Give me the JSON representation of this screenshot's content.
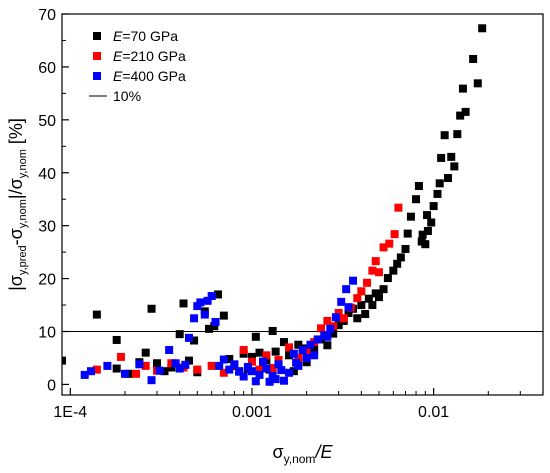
{
  "chart_data": {
    "type": "scatter",
    "title": "",
    "x_scale": "log",
    "xlim": [
      9e-05,
      0.04
    ],
    "ylim": [
      -2,
      70
    ],
    "x_ticks": [
      {
        "value": 0.0001,
        "label": "1E-4"
      },
      {
        "value": 0.001,
        "label": "0.001"
      },
      {
        "value": 0.01,
        "label": "0.01"
      }
    ],
    "y_ticks": [
      {
        "value": 0,
        "label": "0"
      },
      {
        "value": 10,
        "label": "10"
      },
      {
        "value": 20,
        "label": "20"
      },
      {
        "value": 30,
        "label": "30"
      },
      {
        "value": 40,
        "label": "40"
      },
      {
        "value": 50,
        "label": "50"
      },
      {
        "value": 60,
        "label": "60"
      },
      {
        "value": 70,
        "label": "70"
      }
    ],
    "xlabel": {
      "base": "σ",
      "sub": "y,nom",
      "rest": "/E"
    },
    "ylabel": {
      "parts": [
        {
          "t": "|σ"
        },
        {
          "t": "y,pred",
          "sub": true
        },
        {
          "t": "-σ"
        },
        {
          "t": "y,nom",
          "sub": true
        },
        {
          "t": "|/σ"
        },
        {
          "t": "y,nom",
          "sub": true
        },
        {
          "t": " [%]"
        }
      ]
    },
    "legend_position": "top-left",
    "reference_line": {
      "label": "10%",
      "y": 10,
      "color": "#000000"
    },
    "series": [
      {
        "legend_prefix": "E",
        "legend_suffix": "=70 GPa",
        "color": "#000000",
        "points": [
          [
            9e-05,
            4.5
          ],
          [
            0.00014,
            13.2
          ],
          [
            0.00018,
            8.4
          ],
          [
            0.00018,
            3.0
          ],
          [
            0.00021,
            2.0
          ],
          [
            0.00024,
            4.2
          ],
          [
            0.00026,
            6.0
          ],
          [
            0.00028,
            14.3
          ],
          [
            0.0003,
            4.0
          ],
          [
            0.00033,
            2.5
          ],
          [
            0.00036,
            3.2
          ],
          [
            0.0004,
            9.5
          ],
          [
            0.00042,
            15.3
          ],
          [
            0.00045,
            4.5
          ],
          [
            0.00048,
            8.3
          ],
          [
            0.0005,
            2.3
          ],
          [
            0.00055,
            13.8
          ],
          [
            0.00058,
            10.5
          ],
          [
            0.00062,
            11.0
          ],
          [
            0.00065,
            17.0
          ],
          [
            0.0007,
            13.0
          ],
          [
            0.00075,
            4.8
          ],
          [
            0.0008,
            3.5
          ],
          [
            0.00085,
            2.5
          ],
          [
            0.0009,
            5.8
          ],
          [
            0.00095,
            3.0
          ],
          [
            0.001,
            5.2
          ],
          [
            0.00105,
            9.0
          ],
          [
            0.0011,
            6.0
          ],
          [
            0.00115,
            3.8
          ],
          [
            0.0012,
            4.6
          ],
          [
            0.00125,
            2.8
          ],
          [
            0.0013,
            10.1
          ],
          [
            0.00135,
            6.2
          ],
          [
            0.0014,
            4.4
          ],
          [
            0.0015,
            8.0
          ],
          [
            0.0016,
            5.5
          ],
          [
            0.0017,
            2.5
          ],
          [
            0.0018,
            7.5
          ],
          [
            0.0019,
            6.8
          ],
          [
            0.002,
            4.2
          ],
          [
            0.0021,
            5.8
          ],
          [
            0.0022,
            6.5
          ],
          [
            0.0024,
            8.5
          ],
          [
            0.0026,
            7.4
          ],
          [
            0.0028,
            9.6
          ],
          [
            0.003,
            11.2
          ],
          [
            0.0032,
            12.0
          ],
          [
            0.0034,
            13.5
          ],
          [
            0.0036,
            14.3
          ],
          [
            0.0038,
            12.5
          ],
          [
            0.004,
            15.0
          ],
          [
            0.0042,
            13.3
          ],
          [
            0.0044,
            16.2
          ],
          [
            0.0046,
            15.0
          ],
          [
            0.0048,
            17.2
          ],
          [
            0.005,
            16.5
          ],
          [
            0.0053,
            18.0
          ],
          [
            0.0056,
            20.1
          ],
          [
            0.006,
            21.5
          ],
          [
            0.0063,
            22.8
          ],
          [
            0.0066,
            24.0
          ],
          [
            0.007,
            25.6
          ],
          [
            0.0072,
            28.5
          ],
          [
            0.0075,
            31.7
          ],
          [
            0.008,
            35.0
          ],
          [
            0.0083,
            37.5
          ],
          [
            0.0086,
            27.0
          ],
          [
            0.009,
            26.5
          ],
          [
            0.0093,
            29.0
          ],
          [
            0.0097,
            30.6
          ],
          [
            0.01,
            33.7
          ],
          [
            0.0105,
            36.0
          ],
          [
            0.011,
            42.8
          ],
          [
            0.0115,
            47.1
          ],
          [
            0.012,
            39.0
          ],
          [
            0.0125,
            43.0
          ],
          [
            0.013,
            41.2
          ],
          [
            0.0135,
            47.3
          ],
          [
            0.014,
            50.8
          ],
          [
            0.0145,
            55.9
          ],
          [
            0.015,
            51.5
          ],
          [
            0.0165,
            61.5
          ],
          [
            0.0175,
            56.9
          ],
          [
            0.0185,
            67.3
          ],
          [
            0.0087,
            28.3
          ],
          [
            0.0092,
            32.0
          ],
          [
            0.0108,
            38.0
          ]
        ]
      },
      {
        "legend_prefix": "E",
        "legend_suffix": "=210 GPa",
        "color": "#ff0000",
        "points": [
          [
            0.00014,
            2.8
          ],
          [
            0.00019,
            5.2
          ],
          [
            0.00023,
            2.0
          ],
          [
            0.00026,
            3.5
          ],
          [
            0.0003,
            2.6
          ],
          [
            0.00036,
            4.0
          ],
          [
            0.00042,
            3.2
          ],
          [
            0.0005,
            2.8
          ],
          [
            0.0006,
            3.5
          ],
          [
            0.0007,
            2.2
          ],
          [
            0.0008,
            3.7
          ],
          [
            0.0009,
            6.5
          ],
          [
            0.001,
            4.3
          ],
          [
            0.0011,
            2.8
          ],
          [
            0.0012,
            5.5
          ],
          [
            0.0013,
            3.1
          ],
          [
            0.0014,
            4.6
          ],
          [
            0.0016,
            7.0
          ],
          [
            0.0018,
            5.0
          ],
          [
            0.002,
            6.1
          ],
          [
            0.0022,
            8.0
          ],
          [
            0.0024,
            10.6
          ],
          [
            0.0026,
            12.0
          ],
          [
            0.0028,
            11.0
          ],
          [
            0.003,
            13.5
          ],
          [
            0.0032,
            12.5
          ],
          [
            0.0035,
            14.5
          ],
          [
            0.0038,
            16.3
          ],
          [
            0.004,
            17.6
          ],
          [
            0.0043,
            19.2
          ],
          [
            0.0046,
            21.5
          ],
          [
            0.0048,
            23.3
          ],
          [
            0.005,
            21.2
          ],
          [
            0.0053,
            25.9
          ],
          [
            0.0057,
            26.6
          ],
          [
            0.0061,
            28.4
          ],
          [
            0.0064,
            33.4
          ]
        ]
      },
      {
        "legend_prefix": "E",
        "legend_suffix": "=400 GPa",
        "color": "#0000ff",
        "points": [
          [
            0.00012,
            1.8
          ],
          [
            0.00013,
            2.5
          ],
          [
            0.00016,
            3.5
          ],
          [
            0.0002,
            2.0
          ],
          [
            0.00024,
            3.8
          ],
          [
            0.00028,
            0.8
          ],
          [
            0.00031,
            2.6
          ],
          [
            0.00035,
            6.5
          ],
          [
            0.00038,
            4.0
          ],
          [
            0.0004,
            3.0
          ],
          [
            0.00043,
            3.7
          ],
          [
            0.00045,
            8.8
          ],
          [
            0.00048,
            12.5
          ],
          [
            0.0005,
            14.8
          ],
          [
            0.00052,
            15.5
          ],
          [
            0.00055,
            13.2
          ],
          [
            0.00057,
            15.8
          ],
          [
            0.0006,
            16.7
          ],
          [
            0.00063,
            11.8
          ],
          [
            0.00066,
            3.5
          ],
          [
            0.0007,
            4.7
          ],
          [
            0.00075,
            2.8
          ],
          [
            0.0008,
            3.8
          ],
          [
            0.00085,
            2.4
          ],
          [
            0.0009,
            1.5
          ],
          [
            0.00095,
            3.3
          ],
          [
            0.001,
            2.5
          ],
          [
            0.00105,
            0.6
          ],
          [
            0.0011,
            1.8
          ],
          [
            0.00115,
            4.3
          ],
          [
            0.0012,
            3.0
          ],
          [
            0.00125,
            0.5
          ],
          [
            0.0013,
            1.6
          ],
          [
            0.00135,
            1.0
          ],
          [
            0.0014,
            3.8
          ],
          [
            0.0015,
            0.7
          ],
          [
            0.0016,
            2.2
          ],
          [
            0.0017,
            5.8
          ],
          [
            0.0018,
            3.5
          ],
          [
            0.0019,
            6.5
          ],
          [
            0.002,
            5.0
          ],
          [
            0.0021,
            7.5
          ],
          [
            0.0022,
            5.5
          ],
          [
            0.0023,
            8.5
          ],
          [
            0.0025,
            9.3
          ],
          [
            0.0027,
            10.5
          ],
          [
            0.0029,
            12.7
          ],
          [
            0.0031,
            15.6
          ],
          [
            0.0033,
            18.0
          ],
          [
            0.0036,
            19.6
          ],
          [
            0.0026,
            9.0
          ],
          [
            0.0034,
            14.6
          ],
          [
            0.00145,
            2.7
          ],
          [
            0.00175,
            4.1
          ]
        ]
      }
    ]
  }
}
